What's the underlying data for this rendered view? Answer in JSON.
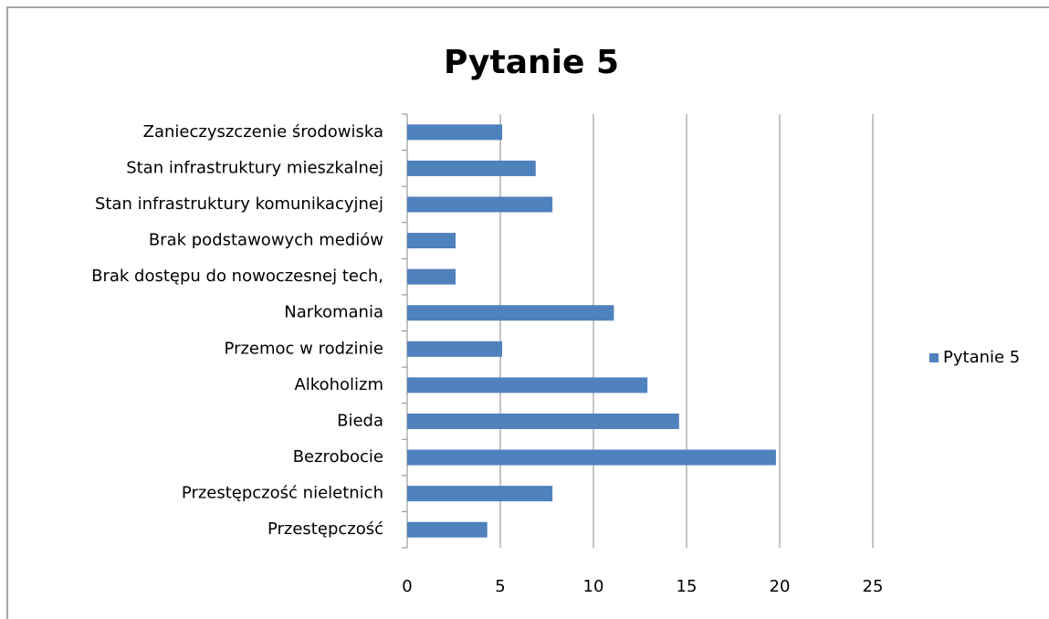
{
  "chart_data": {
    "type": "bar",
    "orientation": "horizontal",
    "title": "Pytanie 5",
    "categories": [
      "Zanieczyszczenie środowiska",
      "Stan infrastruktury mieszkalnej",
      "Stan infrastruktury komunikacyjnej",
      "Brak podstawowych mediów",
      "Brak dostępu do nowoczesnej tech,",
      "Narkomania",
      "Przemoc w rodzinie",
      "Alkoholizm",
      "Bieda",
      "Bezrobocie",
      "Przestępczość nieletnich",
      "Przestępczość"
    ],
    "series": [
      {
        "name": "Pytanie 5",
        "color": "#4f81bd",
        "values": [
          5.1,
          6.9,
          7.8,
          2.6,
          2.6,
          11.1,
          5.1,
          12.9,
          14.6,
          19.8,
          7.8,
          4.3
        ]
      }
    ],
    "xlim": [
      0,
      25
    ],
    "xticks": [
      0,
      5,
      10,
      15,
      20,
      25
    ],
    "grid": true,
    "legend": "right"
  }
}
